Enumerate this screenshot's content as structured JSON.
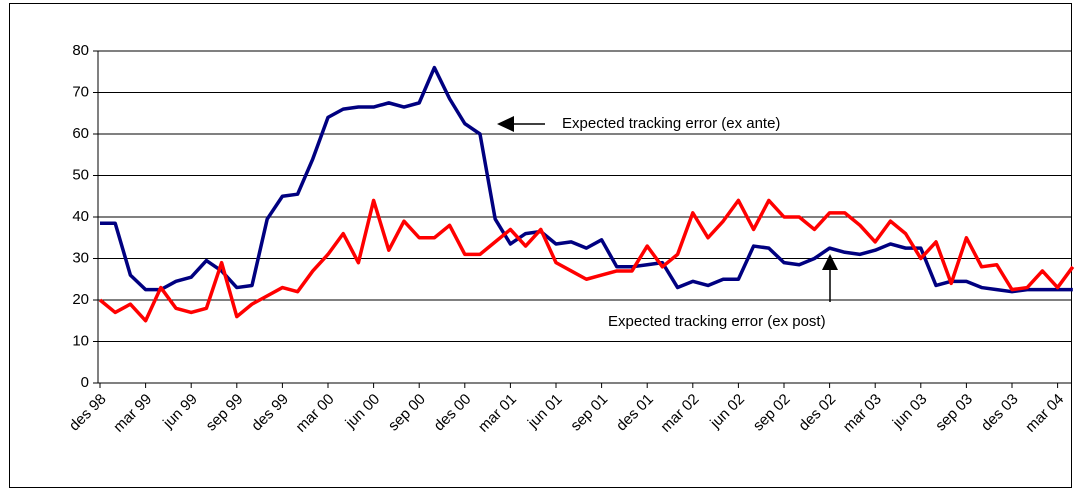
{
  "chart_data": {
    "type": "line",
    "categories": [
      "des 98",
      null,
      null,
      "mar 99",
      null,
      null,
      "jun 99",
      null,
      null,
      "sep 99",
      null,
      null,
      "des 99",
      null,
      null,
      "mar 00",
      null,
      null,
      "jun 00",
      null,
      null,
      "sep 00",
      null,
      null,
      "des 00",
      null,
      null,
      "mar 01",
      null,
      null,
      "jun 01",
      null,
      null,
      "sep 01",
      null,
      null,
      "des 01",
      null,
      null,
      "mar 02",
      null,
      null,
      "jun 02",
      null,
      null,
      "sep 02",
      null,
      null,
      "des 02",
      null,
      null,
      "mar 03",
      null,
      null,
      "jun 03",
      null,
      null,
      "sep 03",
      null,
      null,
      "des 03",
      null,
      null,
      "mar 04",
      null
    ],
    "series": [
      {
        "color": "#000080",
        "values": [
          38.5,
          38.5,
          26,
          22.5,
          22.5,
          24.5,
          25.5,
          29.5,
          27,
          23,
          23.5,
          39.5,
          45,
          45.5,
          54,
          64,
          66,
          66.5,
          66.5,
          67.5,
          66.5,
          67.5,
          76,
          68.5,
          62.5,
          60,
          39.5,
          33.5,
          36,
          36.5,
          33.5,
          34,
          32.5,
          34.5,
          28,
          28,
          28.5,
          29,
          23,
          24.5,
          23.5,
          25,
          25,
          33,
          32.5,
          29,
          28.5,
          30,
          32.5,
          31.5,
          31,
          32,
          33.5,
          32.5,
          32.5,
          23.5,
          24.5,
          24.5,
          23,
          22.5,
          22,
          22.5,
          22.5,
          22.5,
          22.5
        ]
      },
      {
        "color": "#ff0000",
        "values": [
          20,
          17,
          19,
          15,
          23,
          18,
          17,
          18,
          29,
          16,
          19,
          21,
          23,
          22,
          27,
          31,
          36,
          29,
          44,
          32,
          39,
          35,
          35,
          38,
          31,
          31,
          34,
          37,
          33,
          37,
          29,
          27,
          25,
          26,
          27,
          27,
          33,
          28,
          31,
          41,
          35,
          39,
          44,
          37,
          44,
          40,
          40,
          37,
          41,
          41,
          38,
          34,
          39,
          36,
          30,
          34,
          24,
          35,
          28,
          28.5,
          22.5,
          23,
          27,
          23,
          28
        ]
      }
    ],
    "ylim": [
      0,
      80
    ],
    "yticks": [
      0,
      10,
      20,
      30,
      40,
      50,
      60,
      70,
      80
    ],
    "grid": true,
    "annotations": [
      "Expected tracking error (ex ante)",
      "Expected tracking error (ex post)"
    ]
  }
}
